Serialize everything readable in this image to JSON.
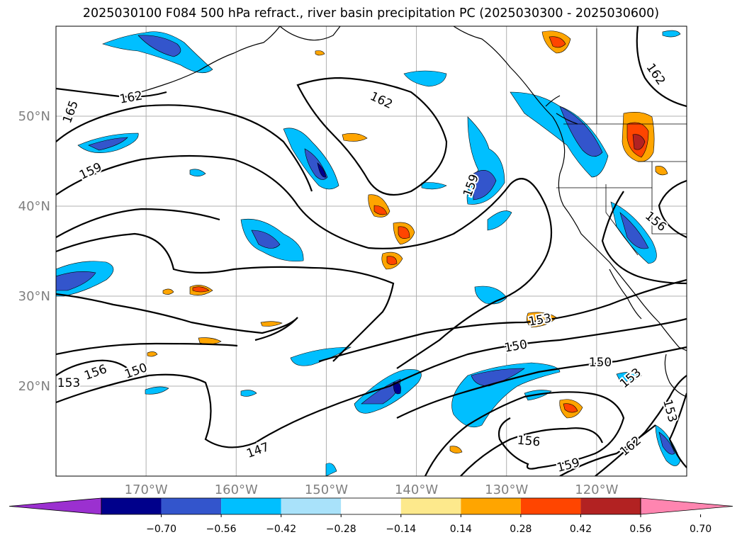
{
  "title": "2025030100 F084 500 hPa refract., river basin precipitation PC (2025030300 - 2025030600)",
  "map": {
    "lon_range": [
      -180,
      -110
    ],
    "lat_range": [
      10,
      60
    ],
    "lat_ticks": [
      {
        "value": 20,
        "label": "20°N"
      },
      {
        "value": 30,
        "label": "30°N"
      },
      {
        "value": 40,
        "label": "40°N"
      },
      {
        "value": 50,
        "label": "50°N"
      }
    ],
    "lon_ticks": [
      {
        "value": -170,
        "label": "170°W"
      },
      {
        "value": -160,
        "label": "160°W"
      },
      {
        "value": -150,
        "label": "150°W"
      },
      {
        "value": -140,
        "label": "140°W"
      },
      {
        "value": -130,
        "label": "130°W"
      },
      {
        "value": -120,
        "label": "120°W"
      }
    ],
    "grid": true,
    "contour_labels": [
      "165",
      "162",
      "162",
      "159",
      "159",
      "162",
      "156",
      "153",
      "150",
      "150",
      "156",
      "153",
      "150",
      "147",
      "156",
      "159",
      "162",
      "153",
      "153"
    ]
  },
  "colorbar": {
    "labels": [
      "−0.70",
      "−0.56",
      "−0.42",
      "−0.28",
      "−0.14",
      "0.14",
      "0.28",
      "0.42",
      "0.56",
      "0.70"
    ],
    "colors": [
      "#9b30d0",
      "#00008b",
      "#3355cc",
      "#00bfff",
      "#a9e2fa",
      "#ffffff",
      "#fde98c",
      "#ffa500",
      "#ff4500",
      "#b22222",
      "#ff85b0"
    ]
  }
}
